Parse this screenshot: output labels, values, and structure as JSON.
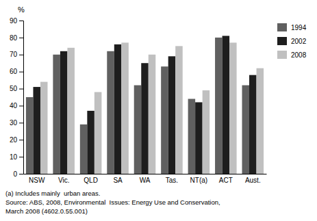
{
  "chart_data": {
    "type": "bar",
    "ylabel": "%",
    "categories": [
      "NSW",
      "Vic.",
      "QLD",
      "SA",
      "WA",
      "Tas.",
      "NT(a)",
      "ACT",
      "Aust."
    ],
    "series": [
      {
        "name": "1994",
        "color": "#606060",
        "values": [
          45,
          70,
          29,
          72,
          52,
          63,
          44,
          80,
          52
        ]
      },
      {
        "name": "2002",
        "color": "#1e1e1e",
        "values": [
          51,
          72,
          37,
          76,
          65,
          69,
          42,
          81,
          58
        ]
      },
      {
        "name": "2008",
        "color": "#c0c0c0",
        "values": [
          54,
          74,
          48,
          77,
          70,
          75,
          49,
          77,
          62
        ]
      }
    ],
    "ylim": [
      0,
      90
    ],
    "yticks": [
      0,
      10,
      20,
      30,
      40,
      50,
      60,
      70,
      80,
      90
    ],
    "grid": false,
    "legend": "right",
    "annotations": [
      "(a) Includes mainly  urban areas.",
      "Source: ABS, 2008, Environmental  Issues: Energy Use and Conservation,",
      "March 2008 (4602.0.55.001)"
    ]
  }
}
